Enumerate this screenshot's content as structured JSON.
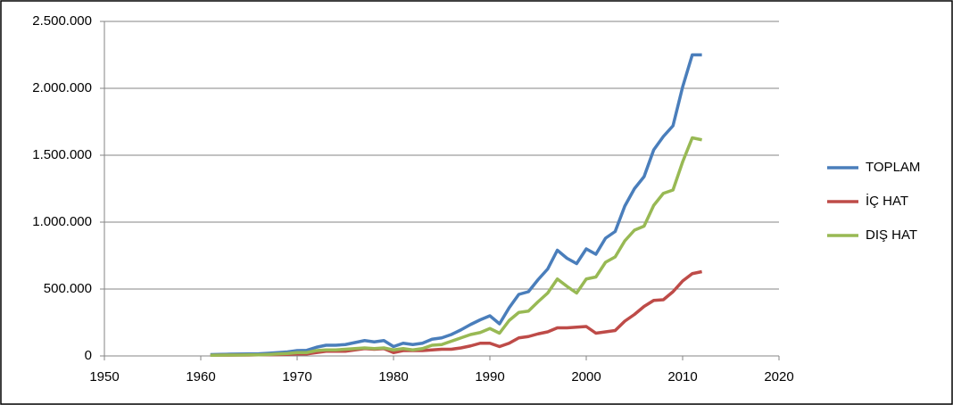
{
  "chart_data": {
    "type": "line",
    "x": [
      1961,
      1962,
      1963,
      1964,
      1965,
      1966,
      1967,
      1968,
      1969,
      1970,
      1971,
      1972,
      1973,
      1974,
      1975,
      1976,
      1977,
      1978,
      1979,
      1980,
      1981,
      1982,
      1983,
      1984,
      1985,
      1986,
      1987,
      1988,
      1989,
      1990,
      1991,
      1992,
      1993,
      1994,
      1995,
      1996,
      1997,
      1998,
      1999,
      2000,
      2001,
      2002,
      2003,
      2004,
      2005,
      2006,
      2007,
      2008,
      2009,
      2010,
      2011,
      2012
    ],
    "series": [
      {
        "name": "TOPLAM",
        "color": "#4a7ebb",
        "values": [
          10000,
          12000,
          13000,
          14000,
          15000,
          16000,
          20000,
          25000,
          30000,
          40000,
          42000,
          65000,
          80000,
          80000,
          85000,
          100000,
          115000,
          105000,
          115000,
          70000,
          95000,
          85000,
          95000,
          125000,
          135000,
          160000,
          195000,
          235000,
          270000,
          300000,
          240000,
          360000,
          460000,
          480000,
          570000,
          650000,
          790000,
          730000,
          690000,
          800000,
          760000,
          880000,
          930000,
          1120000,
          1250000,
          1340000,
          1540000,
          1640000,
          1720000,
          2010000,
          2250000,
          2250000
        ]
      },
      {
        "name": "İÇ HAT",
        "color": "#be4b48",
        "values": [
          5000,
          6000,
          6000,
          7000,
          7000,
          8000,
          9000,
          10000,
          12000,
          15000,
          15000,
          25000,
          35000,
          35000,
          35000,
          45000,
          55000,
          50000,
          55000,
          25000,
          40000,
          40000,
          40000,
          45000,
          50000,
          50000,
          60000,
          75000,
          95000,
          95000,
          70000,
          95000,
          135000,
          145000,
          165000,
          180000,
          210000,
          210000,
          215000,
          220000,
          170000,
          180000,
          190000,
          260000,
          310000,
          370000,
          415000,
          420000,
          480000,
          560000,
          615000,
          630000
        ]
      },
      {
        "name": "DIŞ HAT",
        "color": "#98b954",
        "values": [
          5000,
          6000,
          7000,
          7000,
          8000,
          8000,
          11000,
          15000,
          18000,
          25000,
          25000,
          40000,
          45000,
          45000,
          50000,
          55000,
          60000,
          55000,
          60000,
          45000,
          55000,
          45000,
          55000,
          80000,
          85000,
          110000,
          135000,
          160000,
          175000,
          205000,
          170000,
          265000,
          325000,
          335000,
          405000,
          470000,
          575000,
          520000,
          470000,
          575000,
          590000,
          700000,
          740000,
          860000,
          940000,
          970000,
          1125000,
          1215000,
          1240000,
          1450000,
          1630000,
          1615000
        ]
      }
    ],
    "xlim": [
      1950,
      2020
    ],
    "xticks": [
      1950,
      1960,
      1970,
      1980,
      1990,
      2000,
      2010,
      2020
    ],
    "ylim": [
      0,
      2500000
    ],
    "yticks": [
      0,
      {
        "value": 500000,
        "label": "500.000"
      },
      {
        "value": 1000000,
        "label": "1.000.000"
      },
      {
        "value": 1500000,
        "label": "1.500.000"
      },
      {
        "value": 2000000,
        "label": "2.000.000"
      },
      {
        "value": 2500000,
        "label": "2.500.000"
      }
    ],
    "grid": true,
    "legend": "right"
  }
}
